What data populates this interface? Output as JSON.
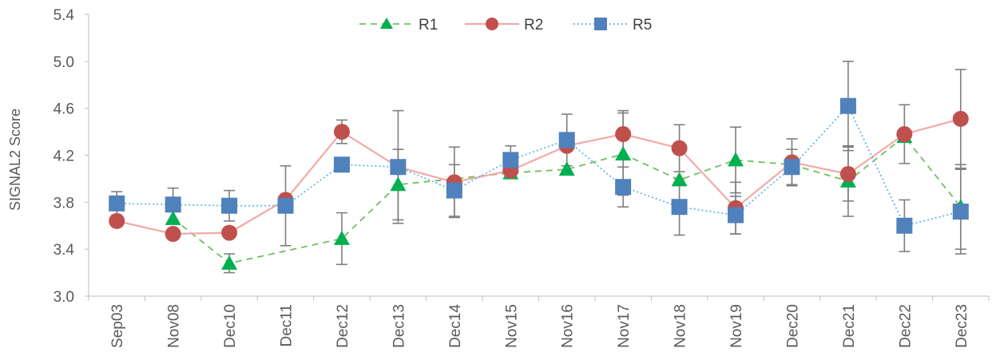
{
  "chart_data": {
    "type": "line",
    "title": "",
    "xlabel": "",
    "ylabel": "SIGNAL2 Score",
    "ylim": [
      3.0,
      5.4
    ],
    "yticks": [
      "3.0",
      "3.4",
      "3.8",
      "4.2",
      "4.6",
      "5.0",
      "5.4"
    ],
    "grid": false,
    "legend_position": "top-center",
    "categories": [
      "Sep03",
      "Nov08",
      "Dec10",
      "Dec11",
      "Dec12",
      "Dec13",
      "Dec14",
      "Nov15",
      "Nov16",
      "Nov17",
      "Nov18",
      "Nov19",
      "Dec20",
      "Dec21",
      "Dec22",
      "Dec23"
    ],
    "series": [
      {
        "name": "R1",
        "color": "#00B050",
        "line_color": "#70C060",
        "line_style": "dashed",
        "marker": "triangle",
        "values": [
          null,
          3.66,
          3.28,
          null,
          3.49,
          3.95,
          null,
          4.05,
          4.08,
          4.21,
          3.99,
          4.16,
          4.12,
          3.98,
          4.36,
          3.76
        ],
        "errors": [
          null,
          null,
          0.08,
          null,
          0.22,
          0.3,
          null,
          null,
          null,
          0.35,
          null,
          0.28,
          null,
          0.3,
          null,
          0.36
        ]
      },
      {
        "name": "R2",
        "color": "#C0504D",
        "line_color": "#F4A9A8",
        "line_style": "solid",
        "marker": "circle",
        "values": [
          3.64,
          3.53,
          3.54,
          3.82,
          4.4,
          4.1,
          3.97,
          4.07,
          4.28,
          4.38,
          4.26,
          3.75,
          4.14,
          4.04,
          4.38,
          4.51
        ],
        "errors": [
          null,
          null,
          null,
          null,
          0.1,
          0.48,
          0.3,
          null,
          null,
          0.2,
          0.2,
          0.22,
          0.2,
          0.23,
          0.25,
          0.42
        ]
      },
      {
        "name": "R5",
        "color": "#4F81BD",
        "line_color": "#62B6E8",
        "line_style": "dotted",
        "marker": "square",
        "values": [
          3.79,
          3.78,
          3.77,
          3.77,
          4.12,
          4.1,
          3.9,
          4.16,
          4.33,
          3.93,
          3.76,
          3.69,
          4.1,
          4.62,
          3.6,
          3.72
        ],
        "errors": [
          0.1,
          0.14,
          0.13,
          0.34,
          null,
          null,
          0.22,
          0.12,
          0.22,
          0.17,
          0.24,
          0.16,
          0.15,
          0.38,
          0.22,
          0.36
        ]
      }
    ]
  }
}
